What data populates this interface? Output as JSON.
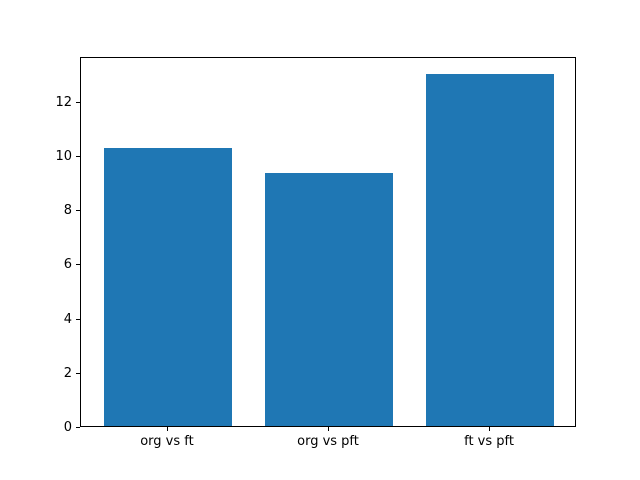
{
  "figure": {
    "background": "#ffffff"
  },
  "chart_data": {
    "type": "bar",
    "title": "",
    "xlabel": "",
    "ylabel": "",
    "categories": [
      "org vs ft",
      "org vs pft",
      "ft vs pft"
    ],
    "values": [
      10.25,
      9.35,
      13.0
    ],
    "yticks": [
      0,
      2,
      4,
      6,
      8,
      10,
      12
    ],
    "ytick_labels": [
      "0",
      "2",
      "4",
      "6",
      "8",
      "10",
      "12"
    ],
    "ylim": [
      0,
      13.65
    ],
    "xlim": [
      -0.54,
      2.54
    ],
    "bar_width_fraction": 0.8,
    "bar_color": "#1f77b4",
    "spine_color": "#000000",
    "tick_color": "#000000",
    "text_color": "#000000",
    "grid": false,
    "legend": "none"
  }
}
